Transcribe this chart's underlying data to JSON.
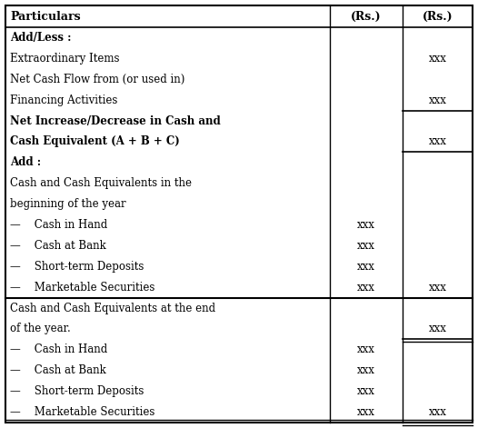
{
  "columns": [
    "Particulars",
    "(Rs.)",
    "(Rs.)"
  ],
  "rows": [
    {
      "particulars": "Add/Less :",
      "rs1": "",
      "rs2": "",
      "bold": true,
      "rs2_top_line": false,
      "rs2_bot_line": false,
      "full_bot_line": false
    },
    {
      "particulars": "Extraordinary Items",
      "rs1": "",
      "rs2": "xxx",
      "bold": false,
      "rs2_top_line": false,
      "rs2_bot_line": false,
      "full_bot_line": false
    },
    {
      "particulars": "Net Cash Flow from (or used in)",
      "rs1": "",
      "rs2": "",
      "bold": false,
      "rs2_top_line": false,
      "rs2_bot_line": false,
      "full_bot_line": false
    },
    {
      "particulars": "Financing Activities",
      "rs1": "",
      "rs2": "xxx",
      "bold": false,
      "rs2_top_line": false,
      "rs2_bot_line": false,
      "full_bot_line": false
    },
    {
      "particulars": "Net Increase/Decrease in Cash and",
      "rs1": "",
      "rs2": "",
      "bold": true,
      "rs2_top_line": true,
      "rs2_bot_line": false,
      "full_bot_line": false
    },
    {
      "particulars": "Cash Equivalent (A + B + C)",
      "rs1": "",
      "rs2": "xxx",
      "bold": true,
      "rs2_top_line": false,
      "rs2_bot_line": true,
      "full_bot_line": false
    },
    {
      "particulars": "Add :",
      "rs1": "",
      "rs2": "",
      "bold": true,
      "rs2_top_line": false,
      "rs2_bot_line": false,
      "full_bot_line": false
    },
    {
      "particulars": "Cash and Cash Equivalents in the",
      "rs1": "",
      "rs2": "",
      "bold": false,
      "rs2_top_line": false,
      "rs2_bot_line": false,
      "full_bot_line": false
    },
    {
      "particulars": "beginning of the year",
      "rs1": "",
      "rs2": "",
      "bold": false,
      "rs2_top_line": false,
      "rs2_bot_line": false,
      "full_bot_line": false
    },
    {
      "particulars": "—    Cash in Hand",
      "rs1": "xxx",
      "rs2": "",
      "bold": false,
      "rs2_top_line": false,
      "rs2_bot_line": false,
      "full_bot_line": false
    },
    {
      "particulars": "—    Cash at Bank",
      "rs1": "xxx",
      "rs2": "",
      "bold": false,
      "rs2_top_line": false,
      "rs2_bot_line": false,
      "full_bot_line": false
    },
    {
      "particulars": "—    Short-term Deposits",
      "rs1": "xxx",
      "rs2": "",
      "bold": false,
      "rs2_top_line": false,
      "rs2_bot_line": false,
      "full_bot_line": false
    },
    {
      "particulars": "—    Marketable Securities",
      "rs1": "xxx",
      "rs2": "xxx",
      "bold": false,
      "rs2_top_line": false,
      "rs2_bot_line": false,
      "full_bot_line": true
    },
    {
      "particulars": "Cash and Cash Equivalents at the end",
      "rs1": "",
      "rs2": "",
      "bold": false,
      "rs2_top_line": false,
      "rs2_bot_line": false,
      "full_bot_line": false
    },
    {
      "particulars": "of the year.",
      "rs1": "",
      "rs2": "xxx",
      "bold": false,
      "rs2_top_line": false,
      "rs2_bot_line": true,
      "full_bot_line": false,
      "rs2_double_bot": true
    },
    {
      "particulars": "—    Cash in Hand",
      "rs1": "xxx",
      "rs2": "",
      "bold": false,
      "rs2_top_line": false,
      "rs2_bot_line": false,
      "full_bot_line": false
    },
    {
      "particulars": "—    Cash at Bank",
      "rs1": "xxx",
      "rs2": "",
      "bold": false,
      "rs2_top_line": false,
      "rs2_bot_line": false,
      "full_bot_line": false
    },
    {
      "particulars": "—    Short-term Deposits",
      "rs1": "xxx",
      "rs2": "",
      "bold": false,
      "rs2_top_line": false,
      "rs2_bot_line": false,
      "full_bot_line": false
    },
    {
      "particulars": "—    Marketable Securities",
      "rs1": "xxx",
      "rs2": "xxx",
      "bold": false,
      "rs2_top_line": false,
      "rs2_bot_line": true,
      "full_bot_line": false,
      "last_row": true
    }
  ],
  "fig_w": 5.26,
  "fig_h": 4.71,
  "dpi": 100,
  "font_size": 8.5,
  "header_font_size": 9.0,
  "bg_color": "#ffffff"
}
